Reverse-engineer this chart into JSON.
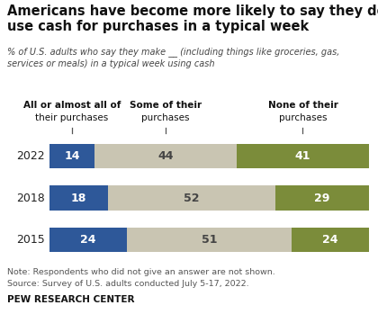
{
  "title_line1": "Americans have become more likely to say they don’t",
  "title_line2": "use cash for purchases in a typical week",
  "subtitle": "% of U.S. adults who say they make __ (including things like groceries, gas,\nservices or meals) in a typical week using cash",
  "years": [
    "2022",
    "2018",
    "2015"
  ],
  "values": [
    [
      14,
      44,
      41
    ],
    [
      18,
      52,
      29
    ],
    [
      24,
      51,
      24
    ]
  ],
  "colors": [
    "#2E5899",
    "#C9C5B2",
    "#7B8C3A"
  ],
  "note_line1": "Note: Respondents who did not give an answer are not shown.",
  "note_line2": "Source: Survey of U.S. adults conducted July 5-17, 2022.",
  "source_label": "PEW RESEARCH CENTER",
  "figsize": [
    4.2,
    3.69
  ],
  "dpi": 100,
  "bg": "#FFFFFF"
}
